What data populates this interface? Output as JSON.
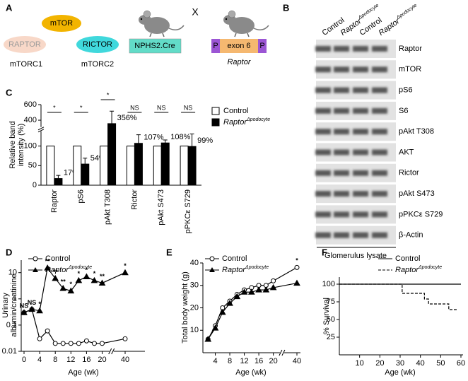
{
  "diagram": {
    "panel": "A",
    "complex": "mTOR",
    "components": [
      "RAPTOR",
      "RICTOR"
    ],
    "complex_names": [
      "mTORC1",
      "mTORC2"
    ],
    "cre": "NPHS2.Cre",
    "cross": "X",
    "construct": [
      "P",
      "exon 6",
      "P"
    ],
    "gene": "Raptor"
  },
  "blot": {
    "panel": "B",
    "columns": [
      {
        "label": "Control"
      },
      {
        "label": "Raptor",
        "superscript": "Δpodocyte"
      },
      {
        "label": "Control"
      },
      {
        "label": "Raptor",
        "superscript": "Δpodocyte"
      }
    ],
    "rows": [
      "Raptor",
      "mTOR",
      "pS6",
      "S6",
      "pAkt T308",
      "AKT",
      "Rictor",
      "pAkt S473",
      "pPKCε S729",
      "β-Actin"
    ],
    "sample": "Glomerulus lysate"
  },
  "chart_data": [
    {
      "type": "bar",
      "panel": "C",
      "ylabel": [
        "Relative band",
        "intensity (%)"
      ],
      "categories": [
        "Raptor",
        "pS6",
        "pAkt T308",
        "Rictor",
        "pAkt S473",
        "pPKCε S729"
      ],
      "series": [
        {
          "name": "Control",
          "color": "#ffffff",
          "values": [
            100,
            100,
            100,
            100,
            100,
            100
          ]
        },
        {
          "name": "Raptor",
          "name_superscript": "Δpodocyte",
          "color": "#000000",
          "values": [
            17,
            54,
            356,
            107,
            108,
            99
          ],
          "errors": [
            8,
            15,
            160,
            22,
            38,
            32
          ],
          "value_labels": [
            "17%",
            "54%",
            "356%",
            "107%",
            "108%",
            "99%"
          ]
        }
      ],
      "significance": [
        "*",
        "*",
        "*",
        "NS",
        "NS",
        "NS"
      ],
      "ylim": [
        0,
        600
      ],
      "ybreak": [
        140,
        300
      ],
      "yticks": [
        0,
        50,
        100,
        400,
        600
      ],
      "legend": "right"
    },
    {
      "type": "line",
      "panel": "D",
      "ylabel": [
        "Urinary",
        "albumin/creatinine"
      ],
      "xlabel": "Age (wk)",
      "log": true,
      "x": [
        0,
        2,
        4,
        6,
        8,
        10,
        12,
        14,
        16,
        18,
        20,
        40
      ],
      "series": [
        {
          "name": "Control",
          "color": "#000000",
          "marker": "circle",
          "values": [
            0.3,
            0.4,
            0.03,
            0.06,
            0.02,
            0.02,
            0.02,
            0.02,
            0.025,
            0.02,
            0.02,
            0.03
          ]
        },
        {
          "name": "Raptor",
          "name_superscript": "Δpodocyte",
          "color": "#000000",
          "marker": "triangle",
          "values": [
            0.3,
            0.4,
            0.35,
            15,
            6,
            2.5,
            2,
            5,
            7,
            5,
            4,
            10
          ]
        }
      ],
      "significance": [
        "NS",
        "NS",
        "*",
        "**",
        "**",
        "**",
        "*",
        "*",
        "*",
        "*",
        "**",
        "*"
      ],
      "xlim": [
        0,
        40
      ],
      "xbreak": [
        22,
        38
      ],
      "xticks": [
        0,
        4,
        8,
        12,
        16,
        20,
        40
      ],
      "ylim": [
        0.01,
        30
      ],
      "yticks": [
        0.01,
        0.1,
        1,
        10
      ],
      "legend": "top"
    },
    {
      "type": "line",
      "panel": "E",
      "ylabel": [
        "Total body weight (g)"
      ],
      "xlabel": "Age (wk)",
      "x": [
        2,
        4,
        6,
        8,
        10,
        12,
        14,
        16,
        18,
        20,
        40
      ],
      "series": [
        {
          "name": "Control",
          "color": "#000000",
          "marker": "circle",
          "values": [
            6,
            12,
            20,
            23,
            26,
            28,
            29,
            30,
            30,
            32,
            38
          ]
        },
        {
          "name": "Raptor",
          "name_superscript": "Δpodocyte",
          "color": "#000000",
          "marker": "triangle",
          "values": [
            6,
            11,
            18,
            22,
            25,
            27,
            27,
            28,
            28,
            29,
            31
          ]
        }
      ],
      "significance": [
        null,
        null,
        null,
        null,
        null,
        null,
        null,
        null,
        null,
        null,
        "*"
      ],
      "xlim": [
        0,
        40
      ],
      "xbreak": [
        22,
        38
      ],
      "xticks": [
        4,
        8,
        12,
        16,
        20,
        40
      ],
      "ylim": [
        0,
        40
      ],
      "yticks": [
        10,
        20,
        30,
        40
      ],
      "legend": "top"
    },
    {
      "type": "step",
      "panel": "F",
      "ylabel": [
        "% Survival"
      ],
      "xlabel": "Age (wk)",
      "series": [
        {
          "name": "Control",
          "color": "#000000",
          "x": [
            0,
            60
          ],
          "values": [
            100,
            100
          ]
        },
        {
          "name": "Raptor",
          "name_superscript": "Δpodocyte",
          "color": "#000000",
          "dash": true,
          "x": [
            0,
            31,
            42,
            44,
            54,
            58
          ],
          "values": [
            100,
            87,
            79,
            72,
            64,
            64
          ]
        }
      ],
      "xlim": [
        0,
        60
      ],
      "xticks": [
        10,
        20,
        30,
        40,
        50,
        60
      ],
      "ylim": [
        0,
        110
      ],
      "yticks": [
        25,
        50,
        75,
        100
      ],
      "legend": "top"
    }
  ]
}
